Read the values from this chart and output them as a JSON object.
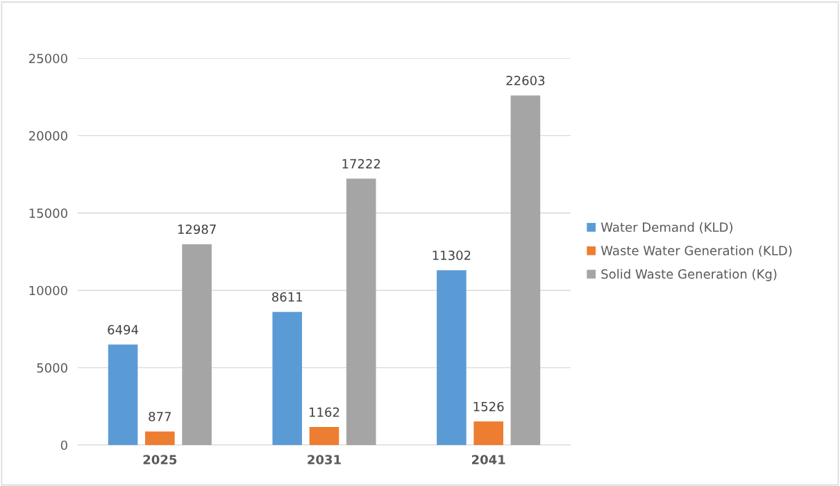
{
  "chart_data": {
    "type": "bar",
    "categories": [
      "2025",
      "2031",
      "2041"
    ],
    "series": [
      {
        "name": "Water Demand (KLD)",
        "color": "#5b9bd5",
        "values": [
          6494,
          8611,
          11302
        ]
      },
      {
        "name": "Waste Water Generation (KLD)",
        "color": "#ed7d31",
        "values": [
          877,
          1162,
          1526
        ]
      },
      {
        "name": "Solid Waste Generation (Kg)",
        "color": "#a5a5a5",
        "values": [
          12987,
          17222,
          22603
        ]
      }
    ],
    "ylim": [
      0,
      25000
    ],
    "yticks": [
      0,
      5000,
      10000,
      15000,
      20000,
      25000
    ],
    "grid": "y",
    "legend": "right",
    "data_labels": true
  }
}
